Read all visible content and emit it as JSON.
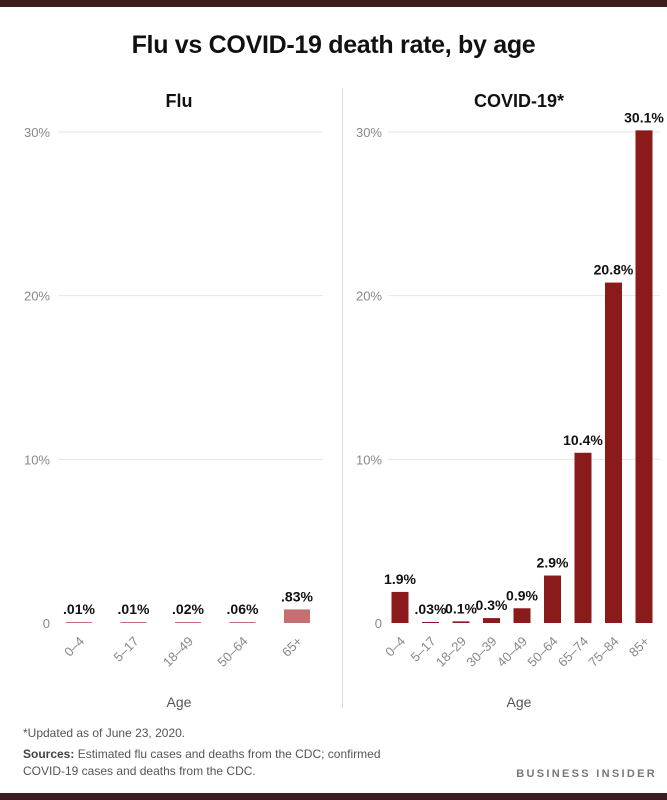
{
  "title": "Flu vs COVID-19 death rate, by age",
  "colors": {
    "bar": "#8b1a1a",
    "flu_bar": "#c47070",
    "grid": "#e6e6e6",
    "bar_text": "#111111"
  },
  "chart_data": [
    {
      "type": "bar",
      "title": "Flu",
      "categories": [
        "0–4",
        "5–17",
        "18–49",
        "50–64",
        "65+"
      ],
      "values": [
        0.01,
        0.01,
        0.02,
        0.06,
        0.83
      ],
      "labels": [
        ".01%",
        ".01%",
        ".02%",
        ".06%",
        ".83%"
      ],
      "xlabel": "Age",
      "ylabel": "",
      "ylim": [
        0,
        30
      ],
      "yticks": [
        0,
        10,
        20,
        30
      ],
      "ytick_labels": [
        "0",
        "10%",
        "20%",
        "30%"
      ]
    },
    {
      "type": "bar",
      "title": "COVID-19*",
      "categories": [
        "0–4",
        "5–17",
        "18–29",
        "30–39",
        "40–49",
        "50–64",
        "65–74",
        "75–84",
        "85+"
      ],
      "values": [
        1.9,
        0.03,
        0.1,
        0.3,
        0.9,
        2.9,
        10.4,
        20.8,
        30.1
      ],
      "labels": [
        "1.9%",
        ".03%",
        "0.1%",
        "0.3%",
        "0.9%",
        "2.9%",
        "10.4%",
        "20.8%",
        "30.1%"
      ],
      "xlabel": "Age",
      "ylabel": "",
      "ylim": [
        0,
        30
      ],
      "yticks": [
        0,
        10,
        20,
        30
      ],
      "ytick_labels": [
        "0",
        "10%",
        "20%",
        "30%"
      ]
    }
  ],
  "footer": {
    "footnote": "*Updated as of June 23, 2020.",
    "sources_label": "Sources:",
    "sources_text": " Estimated flu cases and deaths from the CDC; confirmed COVID-19 cases and deaths from the CDC.",
    "brand": "BUSINESS INSIDER"
  }
}
